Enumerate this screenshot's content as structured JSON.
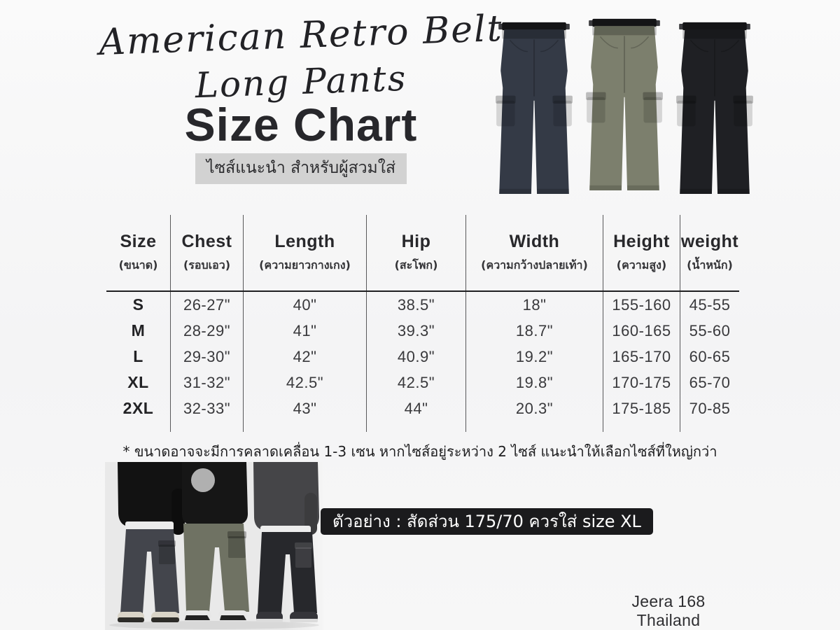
{
  "header": {
    "title_line1": "American Retro Belt",
    "title_line2": "Long Pants",
    "heading": "Size Chart",
    "subtitle_th": "ไซส์แนะนำ สำหรับผู้สวมใส่"
  },
  "products": {
    "items": [
      {
        "name": "dark-navy-cargo-pants"
      },
      {
        "name": "olive-cargo-pants"
      },
      {
        "name": "black-cargo-pants"
      }
    ]
  },
  "size_table": {
    "columns": [
      {
        "en": "Size",
        "th": "(ขนาด)"
      },
      {
        "en": "Chest",
        "th": "(รอบเอว)"
      },
      {
        "en": "Length",
        "th": "(ความยาวกางเกง)"
      },
      {
        "en": "Hip",
        "th": "(สะโพก)"
      },
      {
        "en": "Width",
        "th": "(ความกว้างปลายเท้า)"
      },
      {
        "en": "Height",
        "th": "(ความสูง)"
      },
      {
        "en": "weight",
        "th": "(น้ำหนัก)"
      }
    ],
    "rows": [
      [
        "S",
        "26-27\"",
        "40\"",
        "38.5\"",
        "18\"",
        "155-160",
        "45-55"
      ],
      [
        "M",
        "28-29\"",
        "41\"",
        "39.3\"",
        "18.7\"",
        "160-165",
        "55-60"
      ],
      [
        "L",
        "29-30\"",
        "42\"",
        "40.9\"",
        "19.2\"",
        "165-170",
        "60-65"
      ],
      [
        "XL",
        "31-32\"",
        "42.5\"",
        "42.5\"",
        "19.8\"",
        "170-175",
        "65-70"
      ],
      [
        "2XL",
        "32-33\"",
        "43\"",
        "44\"",
        "20.3\"",
        "175-185",
        "70-85"
      ]
    ]
  },
  "footnote": "* ขนาดอาจจะมีการคลาดเคลื่อน 1-3 เซน หากไซส์อยู่ระหว่าง 2 ไซส์ แนะนำให้เลือกไซส์ที่ใหญ่กว่า",
  "example_banner": "ตัวอย่าง : สัดส่วน 175/70 ควรใส่ size XL",
  "brand": "Jeera 168 Thailand",
  "colors": {
    "highlight_bg": "#d2d2d2",
    "banner_bg": "#1b1b1d",
    "banner_text": "#ffffff",
    "photo_bg": "#e9e9e9",
    "pants_navy": "#343a46",
    "pants_olive": "#7c7f6d",
    "pants_black": "#1f2024",
    "model1_top": "#121212",
    "model1_pants": "#43454c",
    "model2_top": "#161616",
    "model2_pants": "#6f7263",
    "model3_top": "#454548",
    "model3_pants": "#27282c"
  }
}
